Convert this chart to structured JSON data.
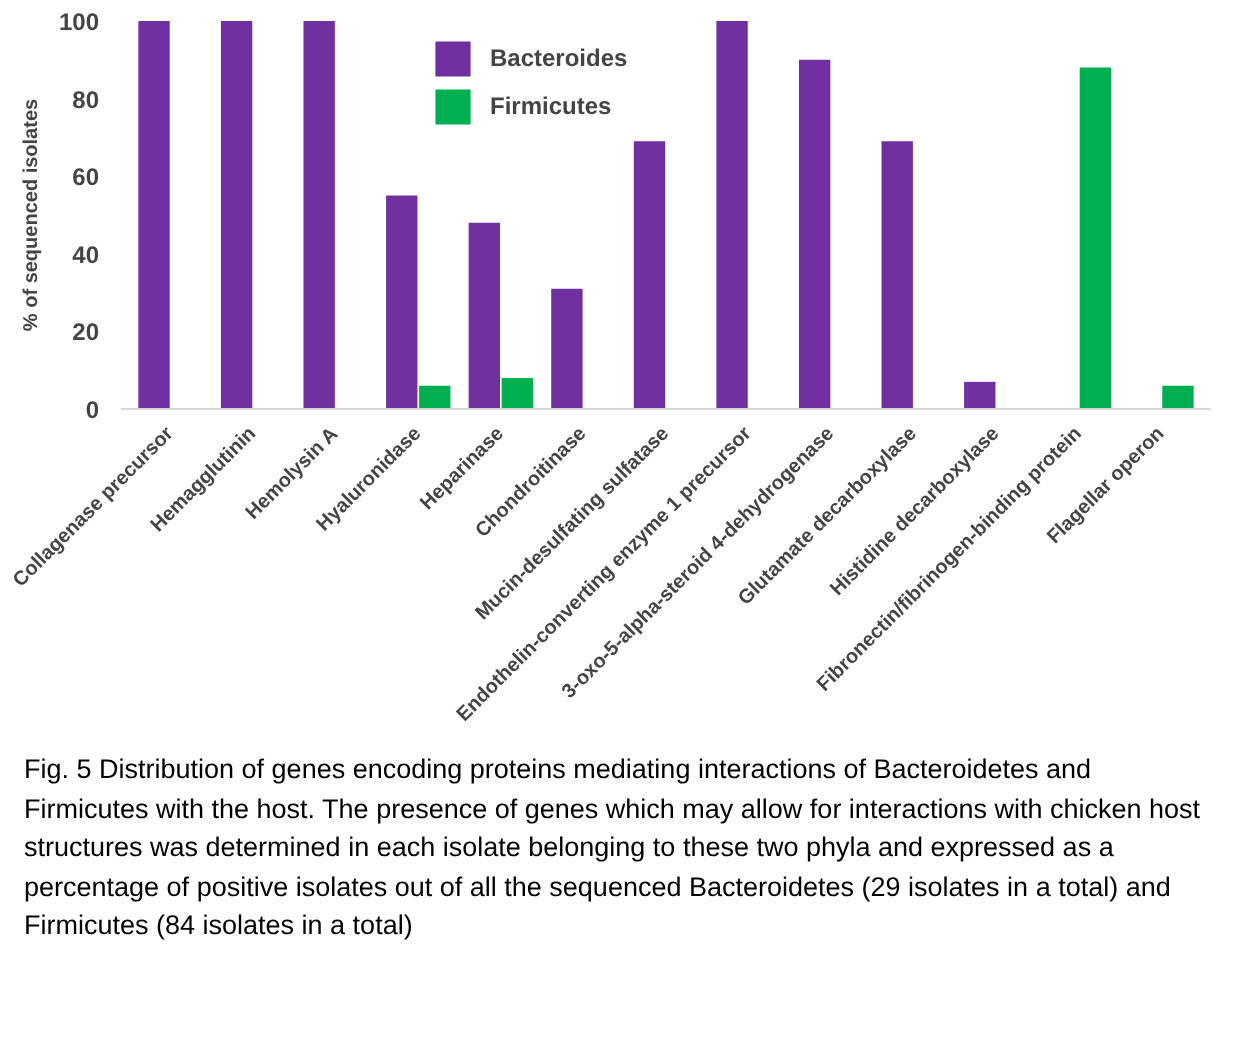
{
  "chart_data": {
    "type": "bar",
    "categories": [
      "Collagenase precursor",
      "Hemagglutinin",
      "Hemolysin A",
      "Hyaluronidase",
      "Heparinase",
      "Chondroitinase",
      "Mucin-desulfating sulfatase",
      "Endothelin-converting enzyme 1 precursor",
      "3-oxo-5-alpha-steroid 4-dehydrogenase",
      "Glutamate decarboxylase",
      "Histidine decarboxylase",
      "Fibronectin/fibrinogen-binding protein",
      "Flagellar operon"
    ],
    "series": [
      {
        "name": "Bacteroides",
        "color": "#7030a0",
        "values": [
          100,
          100,
          100,
          55,
          48,
          31,
          69,
          100,
          90,
          69,
          7,
          null,
          null
        ]
      },
      {
        "name": "Firmicutes",
        "color": "#00b050",
        "values": [
          null,
          null,
          null,
          6,
          8,
          null,
          null,
          null,
          null,
          null,
          null,
          88,
          6
        ]
      }
    ],
    "ylabel": "% of sequenced isolates",
    "ylim": [
      0,
      100
    ],
    "yticks": [
      0,
      20,
      40,
      60,
      80,
      100
    ],
    "grid": false,
    "legend": "top",
    "annotations": [
      "Fig. 5 Distribution of genes encoding proteins mediating interactions of Bacteroidetes and Firmicutes with the host. The presence of genes which may allow for interactions with chicken host structures was determined in each isolate belonging to these two phyla and expressed as a percentage of positive isolates out of all the sequenced Bacteroidetes (29 isolates in a total) and Firmicutes (84 isolates in a total)"
    ]
  }
}
